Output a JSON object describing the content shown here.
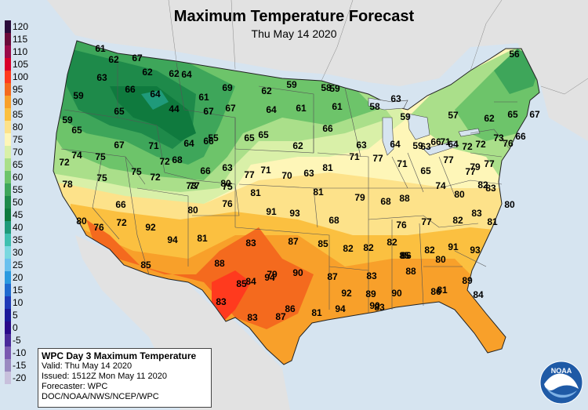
{
  "title": "Maximum Temperature Forecast",
  "subtitle": "Thu May 14 2020",
  "legend": [
    {
      "label": "120",
      "color": "#2a0a3a"
    },
    {
      "label": "115",
      "color": "#6a0a3a"
    },
    {
      "label": "110",
      "color": "#9a0a4a"
    },
    {
      "label": "105",
      "color": "#d9002a"
    },
    {
      "label": "100",
      "color": "#ff3a1e"
    },
    {
      "label": "95",
      "color": "#f46a1e"
    },
    {
      "label": "90",
      "color": "#f8a02a"
    },
    {
      "label": "85",
      "color": "#fbc040"
    },
    {
      "label": "80",
      "color": "#fde28a"
    },
    {
      "label": "75",
      "color": "#fef6b8"
    },
    {
      "label": "70",
      "color": "#d9f0a8"
    },
    {
      "label": "65",
      "color": "#aadf8a"
    },
    {
      "label": "60",
      "color": "#6dc46a"
    },
    {
      "label": "55",
      "color": "#3ea65a"
    },
    {
      "label": "50",
      "color": "#1e8a4a"
    },
    {
      "label": "45",
      "color": "#0f7a3e"
    },
    {
      "label": "40",
      "color": "#1f9a7a"
    },
    {
      "label": "35",
      "color": "#3fc0b0"
    },
    {
      "label": "30",
      "color": "#7ad8e0"
    },
    {
      "label": "25",
      "color": "#6ac0ee"
    },
    {
      "label": "20",
      "color": "#2a9ae0"
    },
    {
      "label": "15",
      "color": "#1e6ad0"
    },
    {
      "label": "10",
      "color": "#1e3ab8"
    },
    {
      "label": "5",
      "color": "#1a1a9a"
    },
    {
      "label": "0",
      "color": "#2a0a8a"
    },
    {
      "label": "-5",
      "color": "#4a2a9a"
    },
    {
      "label": "-10",
      "color": "#7a5ab0"
    },
    {
      "label": "-15",
      "color": "#9a8ac0"
    },
    {
      "label": "-20",
      "color": "#c8c0dc"
    }
  ],
  "info": {
    "title": "WPC Day 3 Maximum Temperature",
    "valid": "Valid: Thu May 14 2020",
    "issued": "Issued: 1512Z Mon May 11 2020",
    "forecaster": "Forecaster: WPC",
    "agency": "DOC/NOAA/NWS/NCEP/WPC"
  },
  "logo_text": "NOAA",
  "temps": [
    "61",
    "62",
    "67",
    "63",
    "62",
    "62",
    "64",
    "56",
    "59",
    "66",
    "64",
    "61",
    "69",
    "62",
    "59",
    "58",
    "59",
    "65",
    "59",
    "44",
    "67",
    "67",
    "64",
    "61",
    "61",
    "58",
    "63",
    "59",
    "57",
    "62",
    "65",
    "67",
    "65",
    "67",
    "71",
    "64",
    "66",
    "55",
    "65",
    "65",
    "62",
    "66",
    "63",
    "64",
    "59",
    "63",
    "66",
    "71",
    "64",
    "72",
    "72",
    "73",
    "76",
    "66",
    "72",
    "68",
    "66",
    "63",
    "72",
    "74",
    "75",
    "75",
    "72",
    "73",
    "75",
    "77",
    "71",
    "70",
    "63",
    "81",
    "71",
    "77",
    "71",
    "65",
    "77",
    "77",
    "79",
    "77",
    "78",
    "75",
    "77",
    "80",
    "81",
    "81",
    "79",
    "68",
    "88",
    "74",
    "80",
    "82",
    "83",
    "80",
    "66",
    "80",
    "76",
    "91",
    "93",
    "68",
    "76",
    "77",
    "82",
    "83",
    "81",
    "80",
    "76",
    "72",
    "92",
    "94",
    "81",
    "83",
    "87",
    "85",
    "82",
    "82",
    "82",
    "85",
    "82",
    "80",
    "91",
    "93",
    "85",
    "88",
    "85",
    "94",
    "90",
    "87",
    "83",
    "86",
    "88",
    "81",
    "89",
    "84",
    "83",
    "79",
    "92",
    "89",
    "90",
    "86",
    "84",
    "83",
    "87",
    "86",
    "81",
    "94",
    "90",
    "83"
  ]
}
